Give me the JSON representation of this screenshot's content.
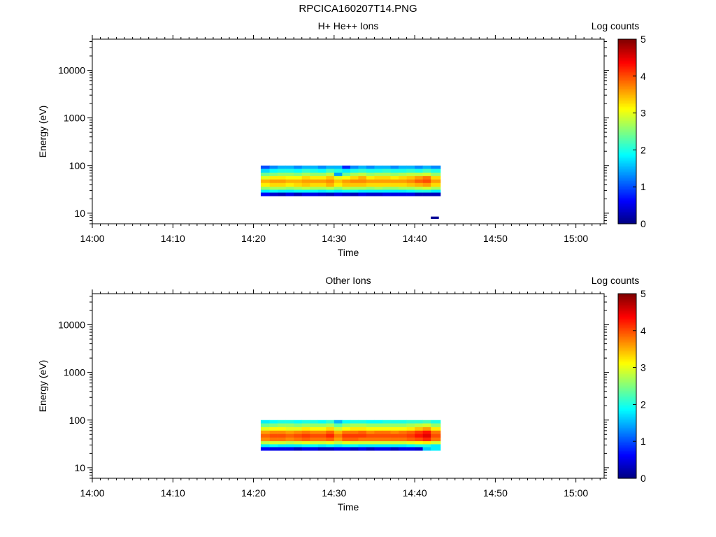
{
  "figure": {
    "title": "RPCICA160207T14.PNG"
  },
  "chart_data": [
    {
      "type": "heatmap",
      "title": "H+ He++ Ions",
      "xlabel": "Time",
      "ylabel": "Energy (eV)",
      "x_ticks": [
        "14:00",
        "14:10",
        "14:20",
        "14:30",
        "14:40",
        "14:50",
        "15:00"
      ],
      "x_range_minutes": [
        0,
        63.5
      ],
      "y_scale": "log",
      "y_ticks": [
        10,
        100,
        1000,
        10000
      ],
      "y_tick_labels": [
        "10",
        "100",
        "1000",
        "10000"
      ],
      "ylim": [
        6,
        45000
      ],
      "colorbar": {
        "label": "Log counts",
        "ticks": [
          "0",
          "1",
          "2",
          "3",
          "4",
          "5"
        ],
        "range": [
          0,
          5
        ],
        "colormap": "jet"
      },
      "time_bins_minutes": [
        20.9,
        22,
        23,
        24,
        25,
        26,
        27,
        28,
        29,
        30,
        31,
        32,
        33,
        34,
        35,
        36,
        37,
        38,
        39,
        40,
        41,
        42,
        43.2
      ],
      "energy_bins_eV": [
        93,
        78,
        66,
        56,
        47,
        40,
        34,
        29,
        25
      ],
      "energy_bin_edges_eV": [
        100,
        85,
        71,
        60,
        51,
        43,
        36,
        31,
        27,
        23
      ],
      "log_counts": [
        [
          1.0,
          1.3,
          1.5,
          1.5,
          1.3,
          1.5,
          1.5,
          1.3,
          1.5,
          1.5,
          0.8,
          1.3,
          1.5,
          1.3,
          1.5,
          1.5,
          1.3,
          1.5,
          1.5,
          1.3,
          1.5,
          1.3
        ],
        [
          1.7,
          1.9,
          2.0,
          2.0,
          1.9,
          2.1,
          2.0,
          1.9,
          2.2,
          2.0,
          1.8,
          2.0,
          2.1,
          2.0,
          2.0,
          2.1,
          2.0,
          2.0,
          2.1,
          2.0,
          2.2,
          2.0
        ],
        [
          2.4,
          2.5,
          2.6,
          2.6,
          2.5,
          2.7,
          2.6,
          2.6,
          2.8,
          1.4,
          2.4,
          2.7,
          2.8,
          2.6,
          2.7,
          2.7,
          2.6,
          2.7,
          2.8,
          2.8,
          2.9,
          2.6
        ],
        [
          3.0,
          3.2,
          3.2,
          3.1,
          3.1,
          3.3,
          3.2,
          3.2,
          3.4,
          3.0,
          3.1,
          3.3,
          3.5,
          3.2,
          3.3,
          3.3,
          3.2,
          3.3,
          3.4,
          3.6,
          3.8,
          3.3
        ],
        [
          3.5,
          3.6,
          3.6,
          3.5,
          3.5,
          3.6,
          3.6,
          3.6,
          3.7,
          3.4,
          3.6,
          3.7,
          3.7,
          3.6,
          3.6,
          3.6,
          3.6,
          3.6,
          3.7,
          3.9,
          4.0,
          3.6
        ],
        [
          3.2,
          3.3,
          3.3,
          3.2,
          3.3,
          3.4,
          3.3,
          3.3,
          3.5,
          3.2,
          3.4,
          3.4,
          3.4,
          3.3,
          3.3,
          3.3,
          3.3,
          3.3,
          3.4,
          3.5,
          3.6,
          3.3
        ],
        [
          2.6,
          2.7,
          2.7,
          2.6,
          2.7,
          2.8,
          2.7,
          2.7,
          2.8,
          2.6,
          2.8,
          2.7,
          2.7,
          2.6,
          2.7,
          2.6,
          2.6,
          2.7,
          2.7,
          2.8,
          2.9,
          2.7
        ],
        [
          1.8,
          1.9,
          1.8,
          1.8,
          1.9,
          1.9,
          1.9,
          1.8,
          1.9,
          1.8,
          1.9,
          1.9,
          1.8,
          1.8,
          1.8,
          1.8,
          1.8,
          1.8,
          1.9,
          2.0,
          2.0,
          1.8
        ],
        [
          0.6,
          0.4,
          0.3,
          0.5,
          0.3,
          0.5,
          0.5,
          0.4,
          0.3,
          0.5,
          0.4,
          0.3,
          0.5,
          0.4,
          0.4,
          0.5,
          0.5,
          0.5,
          0.5,
          0.3,
          0.3,
          0.3
        ]
      ],
      "extra_cells": [
        {
          "time_bin_minutes": [
            42.0,
            43.0
          ],
          "energy_bin_edges_eV": [
            8.5,
            7.6
          ],
          "log_counts": 0.1
        }
      ]
    },
    {
      "type": "heatmap",
      "title": "Other Ions",
      "xlabel": "Time",
      "ylabel": "Energy (eV)",
      "x_ticks": [
        "14:00",
        "14:10",
        "14:20",
        "14:30",
        "14:40",
        "14:50",
        "15:00"
      ],
      "x_range_minutes": [
        0,
        63.5
      ],
      "y_scale": "log",
      "y_ticks": [
        10,
        100,
        1000,
        10000
      ],
      "y_tick_labels": [
        "10",
        "100",
        "1000",
        "10000"
      ],
      "ylim": [
        6,
        45000
      ],
      "colorbar": {
        "label": "Log counts",
        "ticks": [
          "0",
          "1",
          "2",
          "3",
          "4",
          "5"
        ],
        "range": [
          0,
          5
        ],
        "colormap": "jet"
      },
      "time_bins_minutes": [
        20.9,
        22,
        23,
        24,
        25,
        26,
        27,
        28,
        29,
        30,
        31,
        32,
        33,
        34,
        35,
        36,
        37,
        38,
        39,
        40,
        41,
        42,
        43.2
      ],
      "energy_bins_eV": [
        93,
        78,
        66,
        56,
        47,
        40,
        34,
        29,
        25
      ],
      "energy_bin_edges_eV": [
        100,
        85,
        71,
        60,
        51,
        43,
        36,
        31,
        27,
        23
      ],
      "log_counts": [
        [
          1.8,
          1.9,
          2.0,
          2.0,
          1.9,
          2.0,
          2.0,
          1.9,
          2.1,
          1.5,
          1.9,
          2.0,
          2.0,
          1.9,
          1.9,
          2.0,
          2.0,
          2.0,
          2.1,
          2.1,
          2.2,
          2.0
        ],
        [
          2.4,
          2.5,
          2.6,
          2.6,
          2.5,
          2.6,
          2.6,
          2.6,
          2.7,
          2.3,
          2.6,
          2.7,
          2.7,
          2.6,
          2.6,
          2.6,
          2.6,
          2.6,
          2.7,
          2.8,
          2.9,
          2.6
        ],
        [
          3.0,
          3.1,
          3.1,
          3.0,
          3.0,
          3.2,
          3.1,
          3.1,
          3.3,
          2.9,
          3.1,
          3.2,
          3.2,
          3.1,
          3.1,
          3.1,
          3.1,
          3.1,
          3.2,
          3.4,
          3.6,
          3.2
        ],
        [
          3.6,
          3.7,
          3.7,
          3.6,
          3.7,
          3.8,
          3.7,
          3.7,
          3.9,
          3.5,
          3.8,
          3.8,
          3.9,
          3.7,
          3.8,
          3.8,
          3.7,
          3.8,
          3.9,
          4.1,
          4.3,
          3.8
        ],
        [
          3.9,
          4.0,
          4.0,
          3.9,
          4.0,
          4.1,
          4.0,
          4.0,
          4.2,
          3.8,
          4.1,
          4.1,
          4.1,
          4.0,
          4.0,
          4.0,
          4.0,
          4.0,
          4.1,
          4.3,
          4.5,
          4.0
        ],
        [
          3.7,
          3.8,
          3.8,
          3.7,
          3.8,
          3.9,
          3.8,
          3.8,
          3.9,
          3.6,
          3.9,
          3.9,
          3.8,
          3.8,
          3.8,
          3.8,
          3.8,
          3.8,
          3.9,
          4.0,
          4.2,
          3.8
        ],
        [
          2.8,
          2.9,
          2.9,
          2.8,
          2.9,
          3.0,
          2.9,
          2.9,
          3.0,
          2.8,
          3.0,
          2.9,
          2.9,
          2.9,
          2.9,
          2.9,
          2.9,
          2.9,
          3.0,
          3.1,
          3.2,
          2.9
        ],
        [
          1.8,
          1.9,
          1.8,
          1.8,
          1.8,
          1.9,
          1.9,
          1.8,
          1.9,
          1.8,
          1.9,
          1.9,
          1.8,
          1.8,
          1.8,
          1.8,
          1.8,
          1.8,
          1.9,
          2.0,
          2.0,
          1.8
        ],
        [
          0.6,
          0.5,
          0.5,
          0.5,
          0.3,
          0.5,
          0.5,
          0.3,
          0.3,
          0.5,
          0.5,
          0.3,
          0.5,
          0.3,
          0.5,
          0.5,
          0.3,
          0.5,
          0.5,
          0.4,
          1.6,
          1.8
        ]
      ],
      "extra_cells": []
    }
  ]
}
